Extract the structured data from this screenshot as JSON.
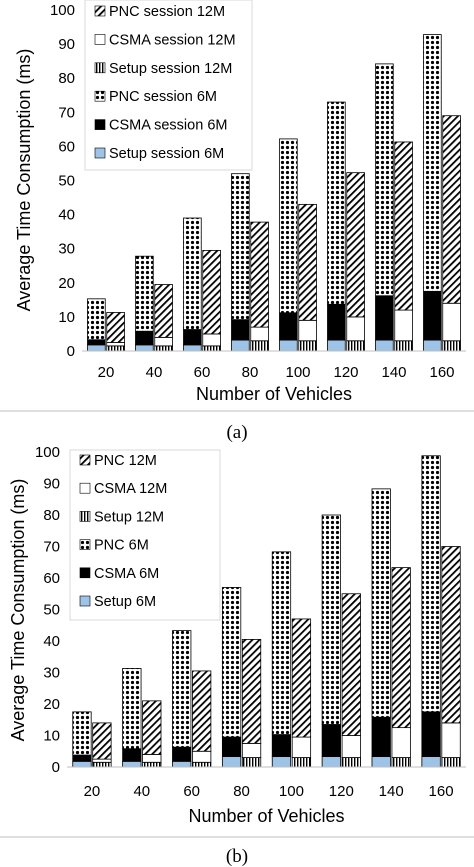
{
  "chart_data": [
    {
      "type": "bar",
      "subtype": "clustered-stacked",
      "caption": "(a)",
      "xlabel": "Number of Vehicles",
      "ylabel": "Average Time Consumption (ms)",
      "ylim": [
        0,
        100
      ],
      "yticks": [
        "0",
        "10",
        "20",
        "30",
        "40",
        "50",
        "60",
        "70",
        "80",
        "90",
        "100"
      ],
      "categories": [
        "20",
        "40",
        "60",
        "80",
        "100",
        "120",
        "140",
        "160"
      ],
      "grid": false,
      "legend_position": "top-left",
      "legend": [
        {
          "label": "PNC session 12M",
          "pattern": "diagonal-hatch"
        },
        {
          "label": "CSMA session 12M",
          "pattern": "white"
        },
        {
          "label": "Setup session 12M",
          "pattern": "vertical-stripes"
        },
        {
          "label": "PNC session 6M",
          "pattern": "dots"
        },
        {
          "label": "CSMA session 6M",
          "pattern": "black"
        },
        {
          "label": "Setup session 6M",
          "pattern": "light-blue"
        }
      ],
      "groups": [
        {
          "name": "6M",
          "series": [
            {
              "label": "Setup session 6M",
              "pattern": "light-blue",
              "values": [
                1.8,
                1.8,
                1.8,
                3.2,
                3.2,
                3.2,
                3.2,
                3.2
              ]
            },
            {
              "label": "CSMA session 6M",
              "pattern": "black",
              "values": [
                1.5,
                4.0,
                4.5,
                6.0,
                8.0,
                10.5,
                13.0,
                14.3
              ]
            },
            {
              "label": "PNC session 6M",
              "pattern": "dots",
              "values": [
                12.0,
                22.0,
                32.7,
                42.8,
                51.0,
                59.3,
                68.0,
                75.3
              ]
            }
          ],
          "totals": [
            15.3,
            27.8,
            39.0,
            52.0,
            62.2,
            73.0,
            84.2,
            92.8
          ]
        },
        {
          "name": "12M",
          "series": [
            {
              "label": "Setup session 12M",
              "pattern": "vertical-stripes",
              "values": [
                1.5,
                1.5,
                1.5,
                3.0,
                3.0,
                3.0,
                3.0,
                3.0
              ]
            },
            {
              "label": "CSMA session 12M",
              "pattern": "white",
              "values": [
                1.0,
                2.5,
                3.5,
                4.0,
                6.0,
                7.0,
                9.0,
                11.0
              ]
            },
            {
              "label": "PNC session 12M",
              "pattern": "diagonal-hatch",
              "values": [
                8.8,
                15.5,
                24.5,
                30.8,
                34.0,
                42.3,
                49.3,
                55.0
              ]
            }
          ],
          "totals": [
            11.3,
            19.5,
            29.5,
            37.8,
            43.0,
            52.3,
            61.3,
            69.0
          ]
        }
      ]
    },
    {
      "type": "bar",
      "subtype": "clustered-stacked",
      "caption": "(b)",
      "xlabel": "Number of Vehicles",
      "ylabel": "Average Time Consumption (ms)",
      "ylim": [
        0,
        100
      ],
      "yticks": [
        "0",
        "10",
        "20",
        "30",
        "40",
        "50",
        "60",
        "70",
        "80",
        "90",
        "100"
      ],
      "categories": [
        "20",
        "40",
        "60",
        "80",
        "100",
        "120",
        "140",
        "160"
      ],
      "grid": false,
      "legend_position": "top-left",
      "legend": [
        {
          "label": "PNC 12M",
          "pattern": "diagonal-hatch"
        },
        {
          "label": "CSMA 12M",
          "pattern": "white"
        },
        {
          "label": "Setup 12M",
          "pattern": "vertical-stripes"
        },
        {
          "label": "PNC 6M",
          "pattern": "dots"
        },
        {
          "label": "CSMA 6M",
          "pattern": "black"
        },
        {
          "label": "Setup 6M",
          "pattern": "light-blue"
        }
      ],
      "groups": [
        {
          "name": "6M",
          "series": [
            {
              "label": "Setup 6M",
              "pattern": "light-blue",
              "values": [
                1.8,
                1.8,
                1.8,
                3.3,
                3.3,
                3.3,
                3.3,
                3.3
              ]
            },
            {
              "label": "CSMA 6M",
              "pattern": "black",
              "values": [
                2.0,
                4.0,
                4.5,
                6.2,
                7.0,
                10.2,
                12.5,
                14.2
              ]
            },
            {
              "label": "PNC 6M",
              "pattern": "dots",
              "values": [
                13.7,
                25.5,
                37.0,
                47.5,
                58.0,
                66.5,
                72.5,
                81.3
              ]
            }
          ],
          "totals": [
            17.5,
            31.3,
            43.3,
            57.0,
            68.3,
            80.0,
            88.3,
            98.8
          ]
        },
        {
          "name": "12M",
          "series": [
            {
              "label": "Setup 12M",
              "pattern": "vertical-stripes",
              "values": [
                1.5,
                1.5,
                1.5,
                3.0,
                3.0,
                3.0,
                3.0,
                3.0
              ]
            },
            {
              "label": "CSMA 12M",
              "pattern": "white",
              "values": [
                1.0,
                2.5,
                3.5,
                4.5,
                6.5,
                7.0,
                9.5,
                11.0
              ]
            },
            {
              "label": "PNC 12M",
              "pattern": "diagonal-hatch",
              "values": [
                11.5,
                17.0,
                25.5,
                33.0,
                37.5,
                45.0,
                50.8,
                56.0
              ]
            }
          ],
          "totals": [
            14.0,
            21.0,
            30.5,
            40.5,
            47.0,
            55.0,
            63.3,
            70.0
          ]
        }
      ]
    }
  ]
}
